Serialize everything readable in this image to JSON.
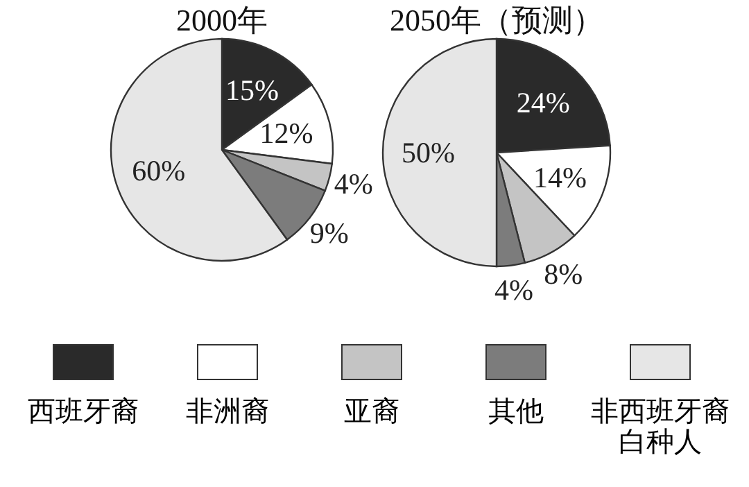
{
  "chart_data": [
    {
      "type": "pie",
      "title": "2000年",
      "categories": [
        "西班牙裔",
        "非洲裔",
        "亚裔",
        "其他",
        "非西班牙裔白种人"
      ],
      "values": [
        15,
        12,
        4,
        9,
        60
      ],
      "value_labels": [
        "15%",
        "12%",
        "4%",
        "9%",
        "60%"
      ],
      "colors": [
        "#2a2a2a",
        "#ffffff",
        "#c4c4c4",
        "#7c7c7c",
        "#e6e6e6"
      ],
      "legend": "bottom"
    },
    {
      "type": "pie",
      "title": "2050年（预测）",
      "categories": [
        null,
        null,
        null,
        null,
        null
      ],
      "values": [
        24,
        14,
        8,
        4,
        50
      ],
      "value_labels": [
        "24%",
        "14%",
        "8%",
        "4%",
        "50%"
      ],
      "colors": [
        "#2a2a2a",
        "#ffffff",
        "#c4c4c4",
        "#7c7c7c",
        "#e6e6e6"
      ]
    }
  ]
}
